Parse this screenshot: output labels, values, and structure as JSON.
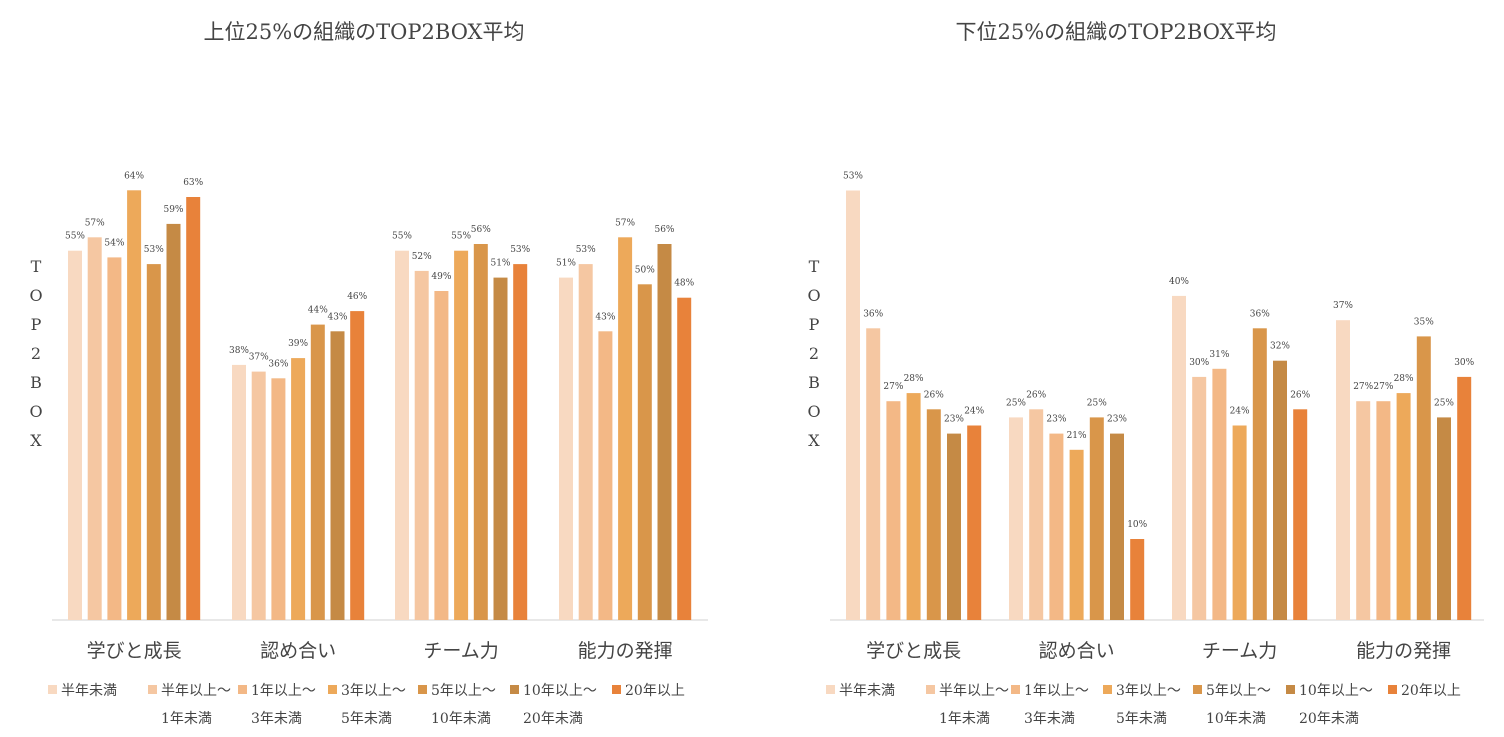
{
  "chart_data": [
    {
      "type": "bar",
      "title": "上位25%の組織のTOP2BOX平均",
      "ylabel": "TOP2BOX",
      "xlabel": "",
      "categories": [
        "学びと成長",
        "認め合い",
        "チーム力",
        "能力の発揮"
      ],
      "series": [
        {
          "name": "半年未満",
          "values": [
            55,
            38,
            55,
            51
          ]
        },
        {
          "name": "半年以上～1年未満",
          "values": [
            57,
            37,
            52,
            53
          ]
        },
        {
          "name": "1年以上～3年未満",
          "values": [
            54,
            36,
            49,
            43
          ]
        },
        {
          "name": "3年以上～5年未満",
          "values": [
            64,
            39,
            55,
            57
          ]
        },
        {
          "name": "5年以上～10年未満",
          "values": [
            53,
            44,
            56,
            50
          ]
        },
        {
          "name": "10年以上～20年未満",
          "values": [
            59,
            43,
            51,
            56
          ]
        },
        {
          "name": "20年以上",
          "values": [
            63,
            46,
            53,
            48
          ]
        }
      ],
      "ylim": [
        0,
        70
      ],
      "grid": false,
      "legend_position": "bottom",
      "value_suffix": "%"
    },
    {
      "type": "bar",
      "title": "下位25%の組織のTOP2BOX平均",
      "ylabel": "TOP2BOX",
      "xlabel": "",
      "categories": [
        "学びと成長",
        "認め合い",
        "チーム力",
        "能力の発揮"
      ],
      "series": [
        {
          "name": "半年未満",
          "values": [
            53,
            25,
            40,
            37
          ]
        },
        {
          "name": "半年以上～1年未満",
          "values": [
            36,
            26,
            30,
            27
          ]
        },
        {
          "name": "1年以上～3年未満",
          "values": [
            27,
            23,
            31,
            27
          ]
        },
        {
          "name": "3年以上～5年未満",
          "values": [
            28,
            21,
            24,
            28
          ]
        },
        {
          "name": "5年以上～10年未満",
          "values": [
            26,
            25,
            36,
            35
          ]
        },
        {
          "name": "10年以上～20年未満",
          "values": [
            23,
            23,
            32,
            25
          ]
        },
        {
          "name": "20年以上",
          "values": [
            24,
            10,
            26,
            30
          ]
        }
      ],
      "ylim": [
        0,
        58
      ],
      "grid": false,
      "legend_position": "bottom",
      "value_suffix": "%"
    }
  ],
  "legend": {
    "items": [
      {
        "line1": "半年未満",
        "line2": ""
      },
      {
        "line1": "半年以上～",
        "line2": "1年未満"
      },
      {
        "line1": "1年以上～",
        "line2": "3年未満"
      },
      {
        "line1": "3年以上～",
        "line2": "5年未満"
      },
      {
        "line1": "5年以上～",
        "line2": "10年未満"
      },
      {
        "line1": "10年以上～",
        "line2": "20年未満"
      },
      {
        "line1": "20年以上",
        "line2": ""
      }
    ]
  },
  "colors": [
    "#f8d9c1",
    "#f5c7a2",
    "#f3b886",
    "#eda95a",
    "#d9964a",
    "#c58a45",
    "#e8823a"
  ]
}
